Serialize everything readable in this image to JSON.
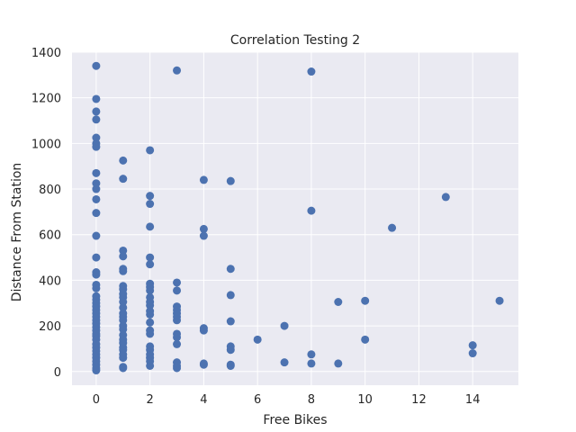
{
  "chart_data": {
    "type": "scatter",
    "title": "Correlation Testing 2",
    "xlabel": "Free Bikes",
    "ylabel": "Distance From Station",
    "xlim": [
      -0.9,
      15.7
    ],
    "ylim": [
      -60,
      1400
    ],
    "xticks": [
      0,
      2,
      4,
      6,
      8,
      10,
      12,
      14
    ],
    "yticks": [
      0,
      200,
      400,
      600,
      800,
      1000,
      1200,
      1400
    ],
    "grid": true,
    "background": "#eaeaf2",
    "grid_color": "#ffffff",
    "marker_color": "#4c72b0",
    "series": [
      {
        "points": [
          [
            0,
            1340
          ],
          [
            0,
            1195
          ],
          [
            0,
            1140
          ],
          [
            0,
            1105
          ],
          [
            0,
            1025
          ],
          [
            0,
            1000
          ],
          [
            0,
            985
          ],
          [
            0,
            870
          ],
          [
            0,
            825
          ],
          [
            0,
            800
          ],
          [
            0,
            755
          ],
          [
            0,
            695
          ],
          [
            0,
            595
          ],
          [
            0,
            500
          ],
          [
            0,
            435
          ],
          [
            0,
            425
          ],
          [
            0,
            380
          ],
          [
            0,
            365
          ],
          [
            0,
            330
          ],
          [
            0,
            315
          ],
          [
            0,
            300
          ],
          [
            0,
            285
          ],
          [
            0,
            270
          ],
          [
            0,
            255
          ],
          [
            0,
            240
          ],
          [
            0,
            225
          ],
          [
            0,
            210
          ],
          [
            0,
            195
          ],
          [
            0,
            180
          ],
          [
            0,
            165
          ],
          [
            0,
            155
          ],
          [
            0,
            140
          ],
          [
            0,
            120
          ],
          [
            0,
            105
          ],
          [
            0,
            90
          ],
          [
            0,
            75
          ],
          [
            0,
            60
          ],
          [
            0,
            45
          ],
          [
            0,
            30
          ],
          [
            0,
            15
          ],
          [
            0,
            5
          ],
          [
            1,
            925
          ],
          [
            1,
            845
          ],
          [
            1,
            530
          ],
          [
            1,
            505
          ],
          [
            1,
            450
          ],
          [
            1,
            440
          ],
          [
            1,
            375
          ],
          [
            1,
            360
          ],
          [
            1,
            340
          ],
          [
            1,
            325
          ],
          [
            1,
            305
          ],
          [
            1,
            280
          ],
          [
            1,
            255
          ],
          [
            1,
            240
          ],
          [
            1,
            225
          ],
          [
            1,
            200
          ],
          [
            1,
            185
          ],
          [
            1,
            160
          ],
          [
            1,
            140
          ],
          [
            1,
            125
          ],
          [
            1,
            105
          ],
          [
            1,
            95
          ],
          [
            1,
            75
          ],
          [
            1,
            60
          ],
          [
            1,
            20
          ],
          [
            1,
            15
          ],
          [
            2,
            970
          ],
          [
            2,
            770
          ],
          [
            2,
            735
          ],
          [
            2,
            635
          ],
          [
            2,
            500
          ],
          [
            2,
            470
          ],
          [
            2,
            385
          ],
          [
            2,
            370
          ],
          [
            2,
            355
          ],
          [
            2,
            325
          ],
          [
            2,
            305
          ],
          [
            2,
            290
          ],
          [
            2,
            265
          ],
          [
            2,
            250
          ],
          [
            2,
            215
          ],
          [
            2,
            180
          ],
          [
            2,
            165
          ],
          [
            2,
            110
          ],
          [
            2,
            95
          ],
          [
            2,
            75
          ],
          [
            2,
            60
          ],
          [
            2,
            45
          ],
          [
            2,
            25
          ],
          [
            3,
            1320
          ],
          [
            3,
            390
          ],
          [
            3,
            355
          ],
          [
            3,
            285
          ],
          [
            3,
            270
          ],
          [
            3,
            255
          ],
          [
            3,
            240
          ],
          [
            3,
            225
          ],
          [
            3,
            165
          ],
          [
            3,
            150
          ],
          [
            3,
            120
          ],
          [
            3,
            40
          ],
          [
            3,
            25
          ],
          [
            3,
            15
          ],
          [
            4,
            840
          ],
          [
            4,
            625
          ],
          [
            4,
            595
          ],
          [
            4,
            190
          ],
          [
            4,
            180
          ],
          [
            4,
            35
          ],
          [
            4,
            30
          ],
          [
            5,
            835
          ],
          [
            5,
            450
          ],
          [
            5,
            335
          ],
          [
            5,
            220
          ],
          [
            5,
            110
          ],
          [
            5,
            95
          ],
          [
            5,
            30
          ],
          [
            5,
            25
          ],
          [
            6,
            140
          ],
          [
            7,
            200
          ],
          [
            7,
            40
          ],
          [
            8,
            1315
          ],
          [
            8,
            705
          ],
          [
            8,
            75
          ],
          [
            8,
            35
          ],
          [
            9,
            305
          ],
          [
            9,
            35
          ],
          [
            10,
            310
          ],
          [
            10,
            140
          ],
          [
            11,
            630
          ],
          [
            13,
            765
          ],
          [
            14,
            115
          ],
          [
            14,
            80
          ],
          [
            15,
            310
          ]
        ]
      }
    ]
  }
}
